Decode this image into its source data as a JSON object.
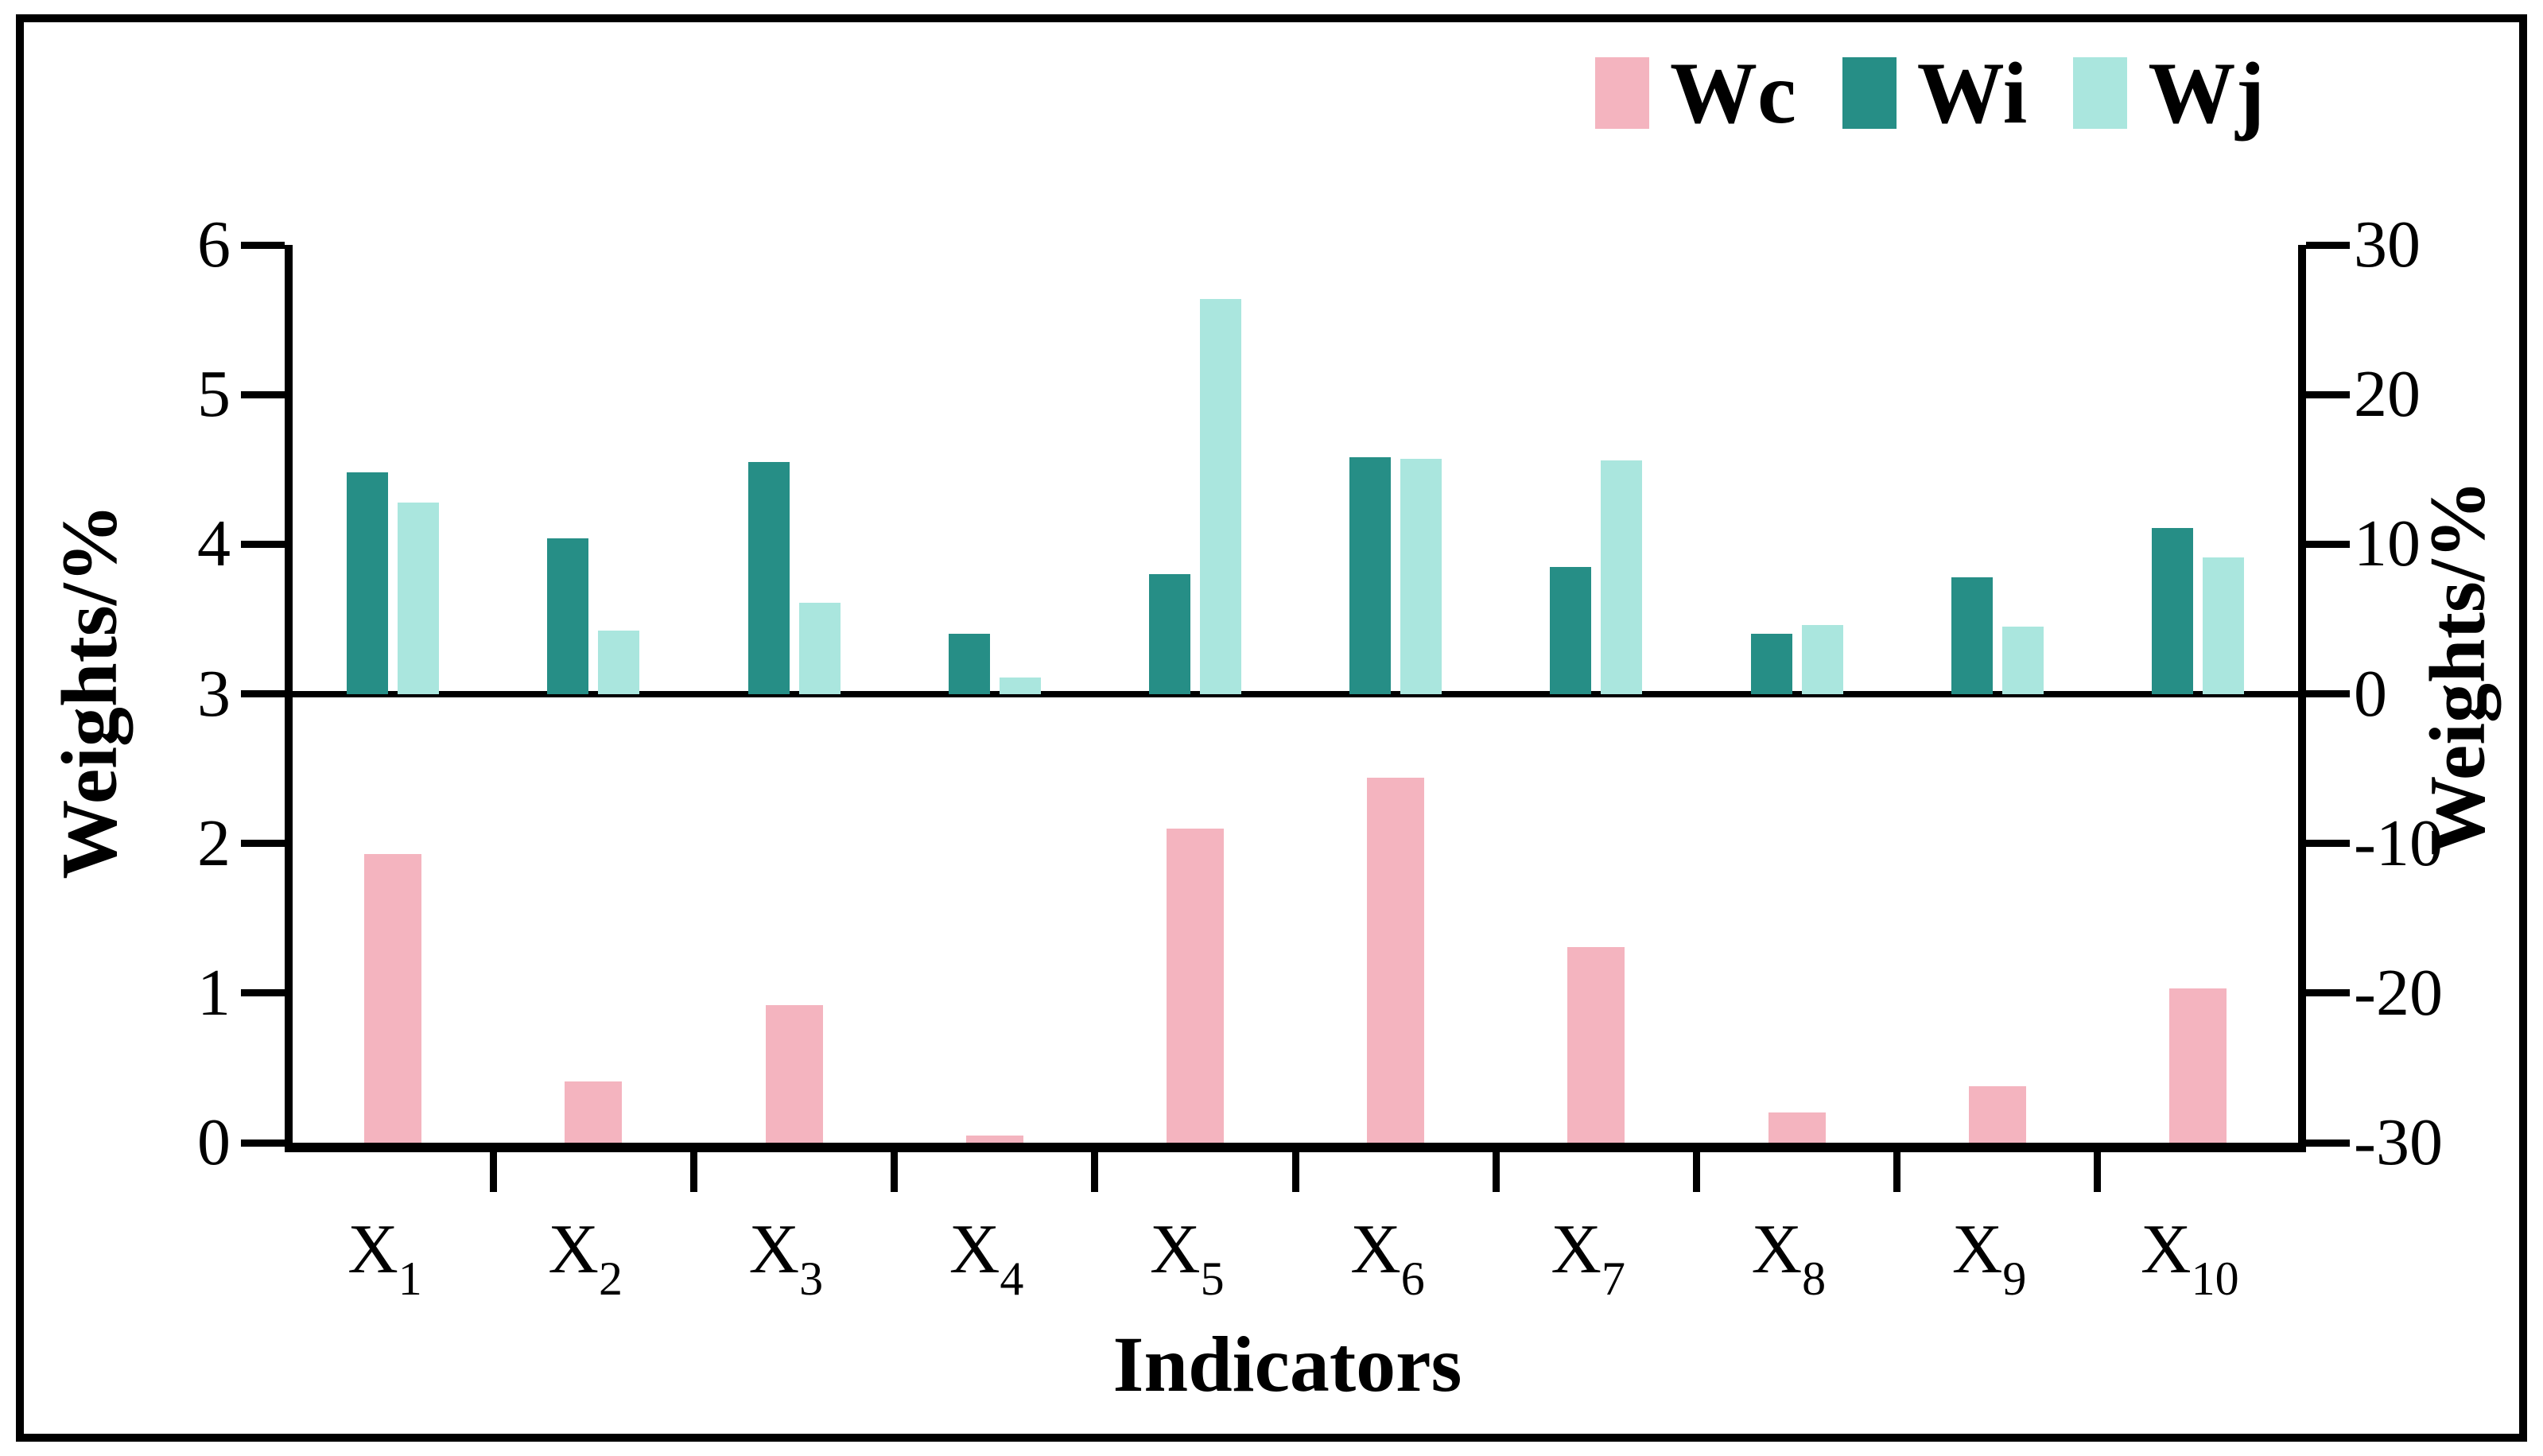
{
  "chart_data": {
    "type": "bar",
    "title": "",
    "xlabel": "Indicators",
    "categories": [
      "X1",
      "X2",
      "X3",
      "X4",
      "X5",
      "X6",
      "X7",
      "X8",
      "X9",
      "X10"
    ],
    "left_axis": {
      "label": "Weights/%",
      "min": 0,
      "max": 6,
      "ticks": [
        6,
        5,
        4,
        3,
        2,
        1,
        0
      ]
    },
    "right_axis": {
      "label": "Weights/%",
      "min": -30,
      "max": 30,
      "ticks": [
        30,
        20,
        10,
        0,
        -10,
        -20,
        -30
      ]
    },
    "baseline": "Wi and Wj bars rise from right-axis 0 (= left-axis 3); Wc bars rise from left-axis 0",
    "grid": "off",
    "legend_position": "top-right",
    "series": [
      {
        "name": "Wc",
        "axis": "left",
        "color": "#F4B4BF",
        "values": [
          1.93,
          0.41,
          0.92,
          0.05,
          2.1,
          2.44,
          1.31,
          0.2,
          0.38,
          1.03
        ]
      },
      {
        "name": "Wi",
        "axis": "right",
        "color": "#268E86",
        "values": [
          14.8,
          10.4,
          15.5,
          4.0,
          8.0,
          15.8,
          8.5,
          4.0,
          7.8,
          11.1
        ]
      },
      {
        "name": "Wj",
        "axis": "right",
        "color": "#AAE6DE",
        "values": [
          12.8,
          4.2,
          6.1,
          1.1,
          26.4,
          15.7,
          15.6,
          4.6,
          4.5,
          9.1
        ]
      }
    ]
  }
}
